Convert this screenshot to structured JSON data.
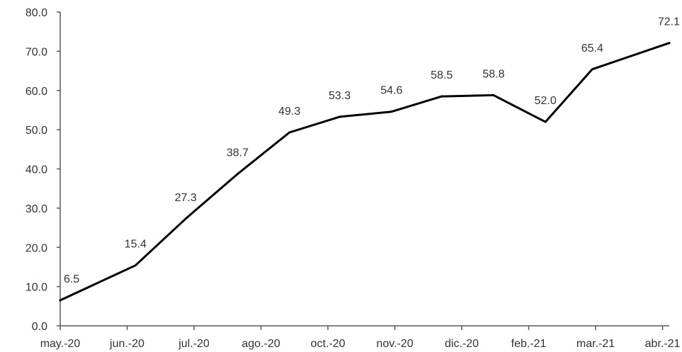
{
  "chart_data": {
    "type": "line",
    "x": [
      "2020-05-01",
      "2020-06-15",
      "2020-07-15",
      "2020-08-15",
      "2020-09-15",
      "2020-10-15",
      "2020-11-15",
      "2020-12-15",
      "2021-01-15",
      "2021-02-15",
      "2021-03-15",
      "2021-04-30"
    ],
    "series": [
      {
        "values": [
          6.5,
          15.4,
          27.3,
          38.7,
          49.3,
          53.3,
          54.6,
          58.5,
          58.8,
          52.0,
          65.4,
          72.1
        ],
        "labels": [
          "6.5",
          "15.4",
          "27.3",
          "38.7",
          "49.3",
          "53.3",
          "54.6",
          "58.5",
          "58.8",
          "52.0",
          "65.4",
          "72.1"
        ],
        "color": "#000000"
      }
    ],
    "xlim": [
      "2020-05-01",
      "2021-04-30"
    ],
    "ylim": [
      0,
      80
    ],
    "x_ticks": [
      {
        "date": "2020-05-01",
        "label": "may.-20"
      },
      {
        "date": "2020-06-10",
        "label": "jun.-20"
      },
      {
        "date": "2020-07-20",
        "label": "jul.-20"
      },
      {
        "date": "2020-08-29",
        "label": "ago.-20"
      },
      {
        "date": "2020-10-08",
        "label": "oct.-20"
      },
      {
        "date": "2020-11-17",
        "label": "nov.-20"
      },
      {
        "date": "2020-12-27",
        "label": "dic.-20"
      },
      {
        "date": "2021-02-05",
        "label": "feb.-21"
      },
      {
        "date": "2021-03-17",
        "label": "mar.-21"
      },
      {
        "date": "2021-04-26",
        "label": "abr.-21"
      }
    ],
    "y_ticks": [
      {
        "value": 0,
        "label": "0.0"
      },
      {
        "value": 10,
        "label": "10.0"
      },
      {
        "value": 20,
        "label": "20.0"
      },
      {
        "value": 30,
        "label": "30.0"
      },
      {
        "value": 40,
        "label": "40.0"
      },
      {
        "value": 50,
        "label": "50.0"
      },
      {
        "value": 60,
        "label": "60.0"
      },
      {
        "value": 70,
        "label": "70.0"
      },
      {
        "value": 80,
        "label": "80.0"
      }
    ],
    "grid": false,
    "axis_color": "#595959"
  }
}
